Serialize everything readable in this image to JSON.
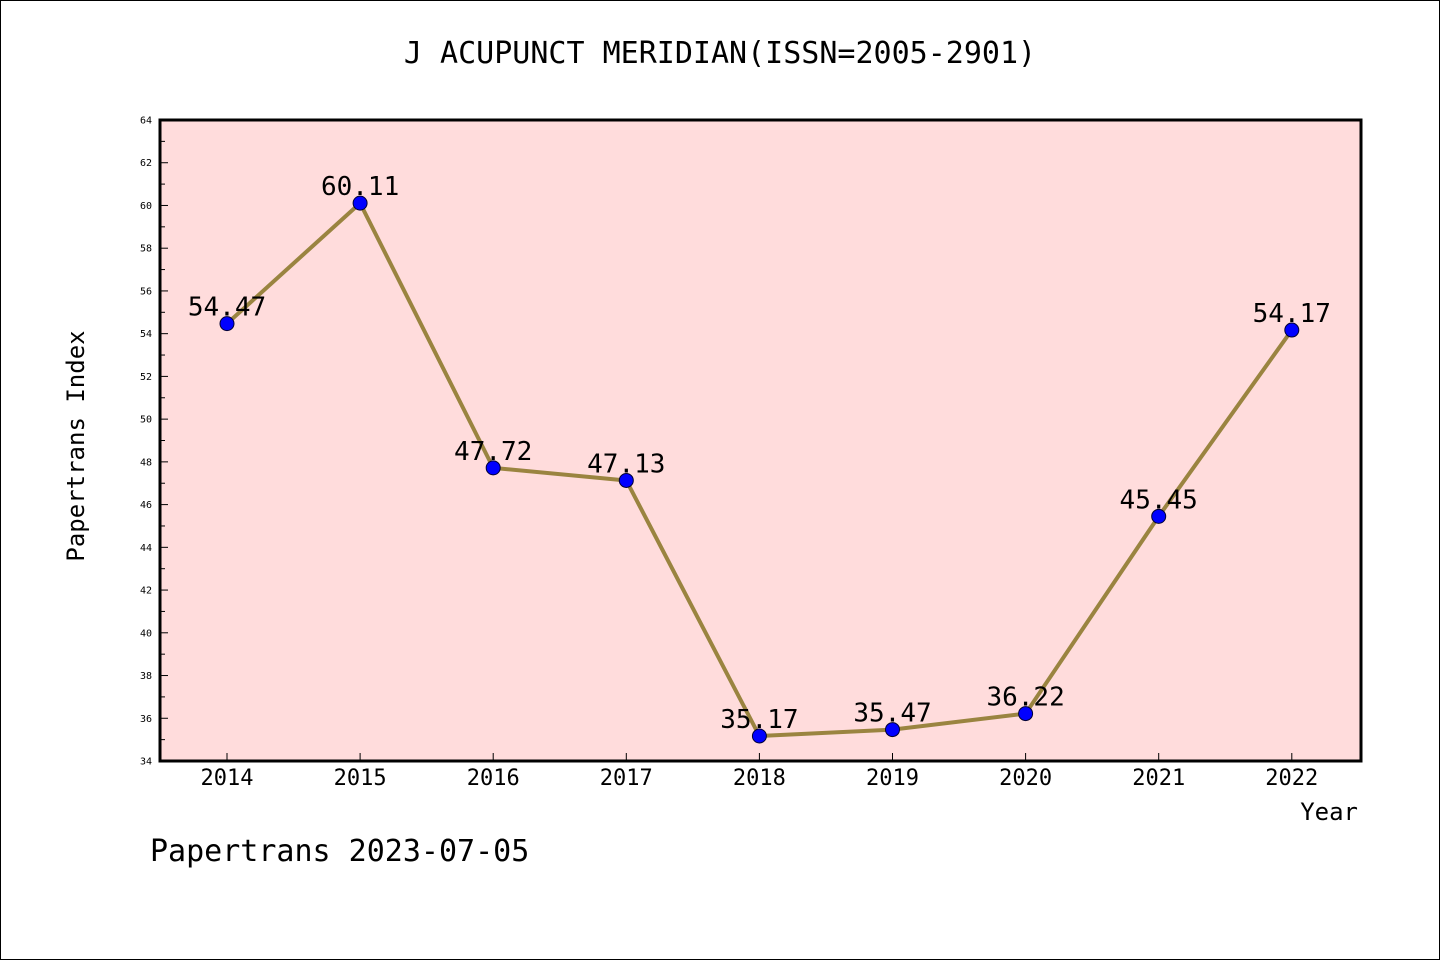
{
  "header": {
    "title": "J ACUPUNCT MERIDIAN(ISSN=2005-2901)"
  },
  "footer": {
    "text": "Papertrans 2023-07-05"
  },
  "colors": {
    "plot_background": "#ffdcdc",
    "line": "#9a8440",
    "marker": "#0000ff",
    "axis": "#000000"
  },
  "chart_data": {
    "type": "line",
    "title": "J ACUPUNCT MERIDIAN(ISSN=2005-2901)",
    "xlabel": "Year",
    "ylabel": "Papertrans Index",
    "categories": [
      "2014",
      "2015",
      "2016",
      "2017",
      "2018",
      "2019",
      "2020",
      "2021",
      "2022"
    ],
    "values": [
      54.47,
      60.11,
      47.72,
      47.13,
      35.17,
      35.47,
      36.22,
      45.45,
      54.17
    ],
    "data_labels": [
      "54.47",
      "60.11",
      "47.72",
      "47.13",
      "35.17",
      "35.47",
      "36.22",
      "45.45",
      "54.17"
    ],
    "ylim": [
      34,
      64
    ],
    "y_ticks": [
      "34",
      "36",
      "38",
      "40",
      "42",
      "44",
      "46",
      "48",
      "50",
      "52",
      "54",
      "56",
      "58",
      "60",
      "62",
      "64"
    ],
    "grid": false,
    "legend": "none"
  }
}
